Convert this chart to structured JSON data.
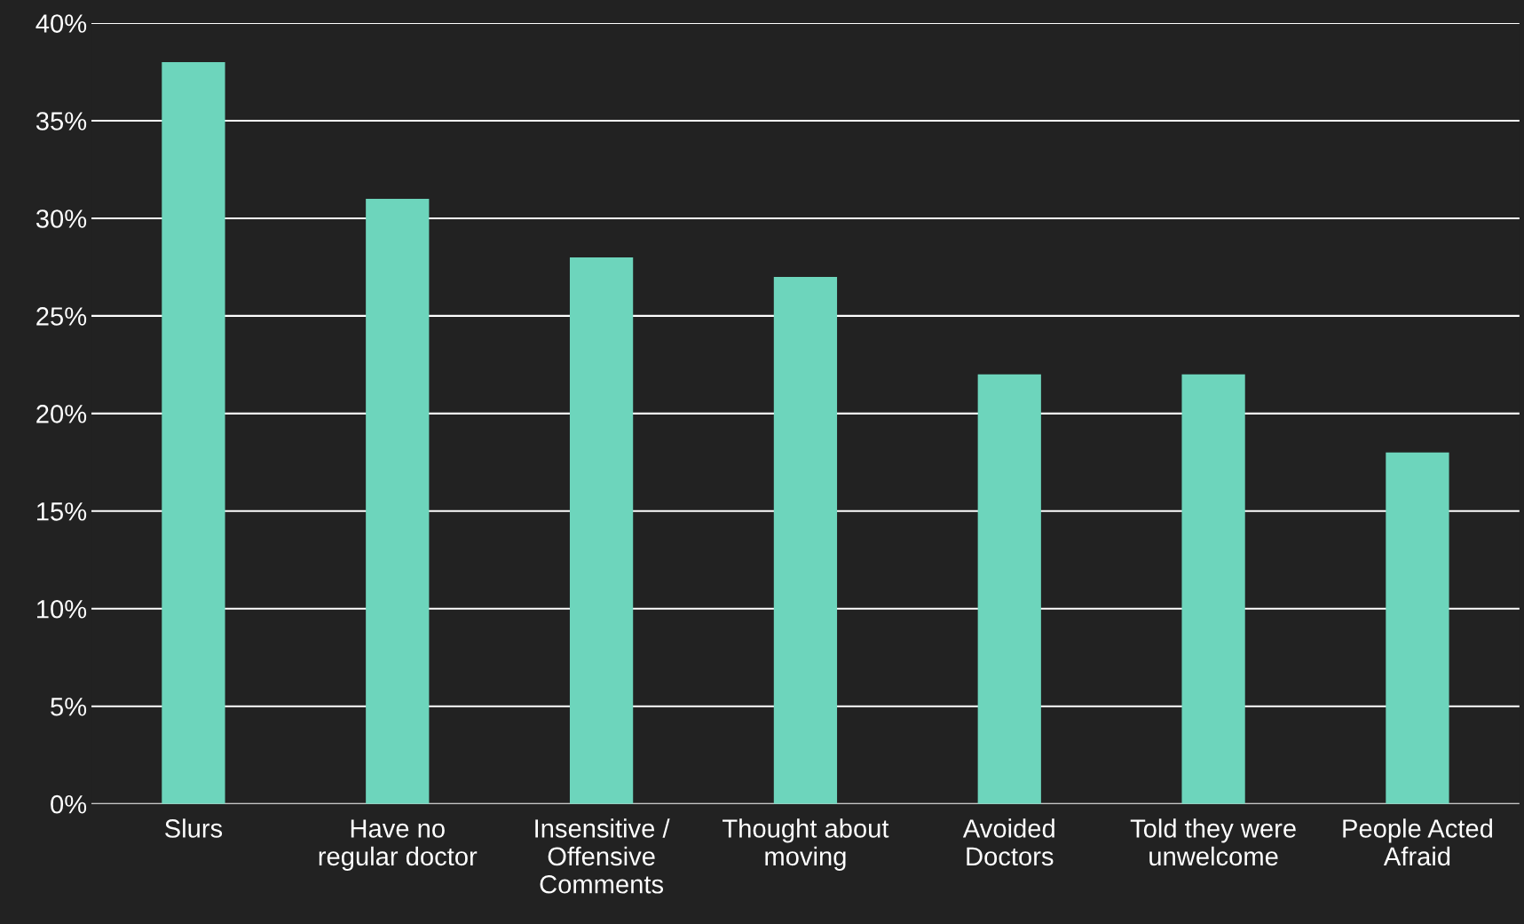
{
  "chart_data": {
    "type": "bar",
    "categories": [
      "Slurs",
      "Have no\nregular doctor",
      "Insensitive /\nOffensive\nComments",
      "Thought about\nmoving",
      "Avoided\nDoctors",
      "Told they were\nunwelcome",
      "People Acted\nAfraid"
    ],
    "values": [
      38,
      31,
      28,
      27,
      22,
      22,
      18
    ],
    "color": "#6dd5bc",
    "ylim": [
      0,
      40
    ],
    "yticks": [
      {
        "value": 0,
        "label": "0%"
      },
      {
        "value": 5,
        "label": "5%"
      },
      {
        "value": 10,
        "label": "10%"
      },
      {
        "value": 15,
        "label": "15%"
      },
      {
        "value": 20,
        "label": "20%"
      },
      {
        "value": 25,
        "label": "25%"
      },
      {
        "value": 30,
        "label": "30%"
      },
      {
        "value": 35,
        "label": "35%"
      },
      {
        "value": 40,
        "label": "40%"
      }
    ],
    "grid": "y",
    "legend": false
  }
}
